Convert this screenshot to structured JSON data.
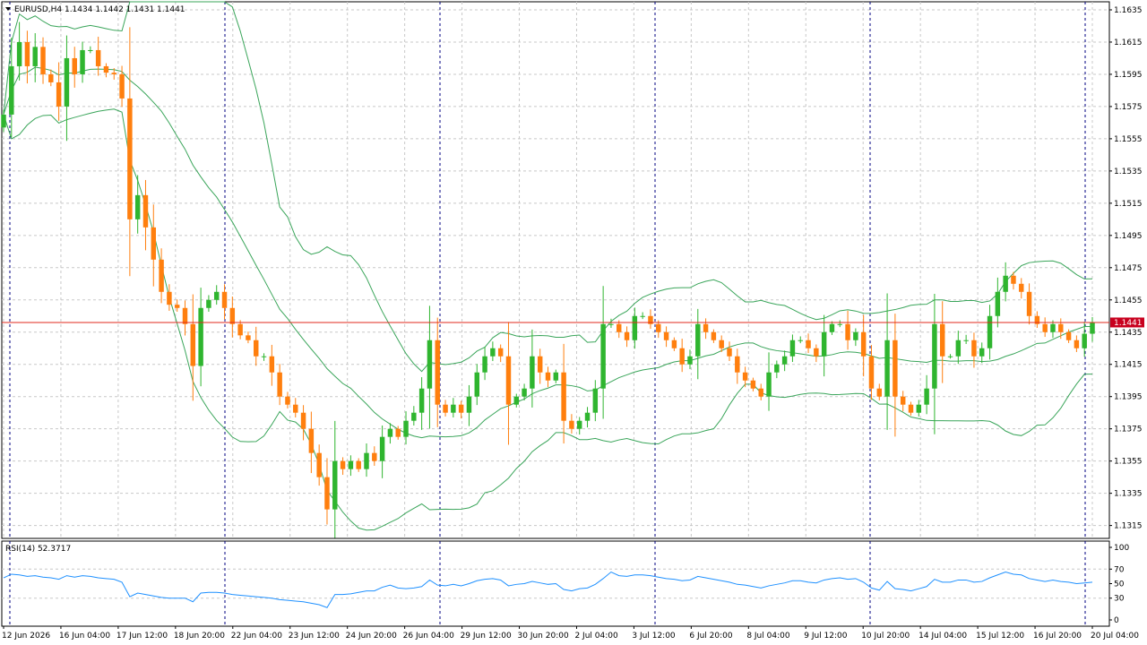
{
  "window": {
    "symbol_header": "EURUSD,H4  1.1434 1.1442 1.1431 1.1441",
    "rsi_header": "RSI(14) 52.3717",
    "current_price_tag": "1.1441"
  },
  "colors": {
    "bull": "#2fb52f",
    "bear": "#ff7f0e",
    "bands": "#3aa55a",
    "rsi": "#1e90ff",
    "price_line": "#e0281e",
    "grid": "#c8c8c8",
    "frame": "#000080"
  },
  "chart_data": {
    "type": "candlestick",
    "symbol": "EURUSD",
    "timeframe": "H4",
    "price_ticks": [
      "1.1635",
      "1.1615",
      "1.1595",
      "1.1575",
      "1.1555",
      "1.1535",
      "1.1515",
      "1.1495",
      "1.1475",
      "1.1455",
      "1.1435",
      "1.1415",
      "1.1395",
      "1.1375",
      "1.1355",
      "1.1335",
      "1.1315"
    ],
    "price_range": [
      1.1307,
      1.164
    ],
    "current_price": 1.1441,
    "rsi_ticks": [
      "100",
      "70",
      "50",
      "30",
      "0"
    ],
    "rsi_range": [
      0,
      100
    ],
    "time_labels": [
      "12 Jun 2026",
      "16 Jun 04:00",
      "17 Jun 12:00",
      "18 Jun 20:00",
      "22 Jun 04:00",
      "23 Jun 12:00",
      "24 Jun 20:00",
      "26 Jun 04:00",
      "29 Jun 12:00",
      "30 Jun 20:00",
      "2 Jul 04:00",
      "3 Jul 12:00",
      "6 Jul 20:00",
      "8 Jul 04:00",
      "9 Jul 12:00",
      "10 Jul 20:00",
      "14 Jul 04:00",
      "15 Jul 12:00",
      "16 Jul 20:00",
      "20 Jul 04:00"
    ],
    "closes": [
      1.157,
      1.16,
      1.1615,
      1.16,
      1.1612,
      1.1595,
      1.159,
      1.1575,
      1.1605,
      1.1595,
      1.161,
      1.161,
      1.16,
      1.1596,
      1.1595,
      1.158,
      1.1505,
      1.152,
      1.15,
      1.148,
      1.146,
      1.1452,
      1.145,
      1.144,
      1.1414,
      1.145,
      1.1455,
      1.146,
      1.145,
      1.144,
      1.1433,
      1.143,
      1.142,
      1.142,
      1.141,
      1.1395,
      1.139,
      1.1385,
      1.1375,
      1.136,
      1.1345,
      1.1325,
      1.1355,
      1.135,
      1.1355,
      1.135,
      1.136,
      1.1355,
      1.137,
      1.1375,
      1.137,
      1.138,
      1.1385,
      1.14,
      1.143,
      1.139,
      1.1385,
      1.139,
      1.1385,
      1.1395,
      1.141,
      1.142,
      1.1425,
      1.142,
      1.139,
      1.1395,
      1.14,
      1.142,
      1.141,
      1.1405,
      1.141,
      1.138,
      1.1375,
      1.138,
      1.1385,
      1.14,
      1.144,
      1.144,
      1.1435,
      1.143,
      1.1445,
      1.1445,
      1.144,
      1.1435,
      1.143,
      1.1425,
      1.1415,
      1.142,
      1.144,
      1.1435,
      1.143,
      1.1425,
      1.142,
      1.141,
      1.1405,
      1.14,
      1.1395,
      1.141,
      1.1415,
      1.142,
      1.143,
      1.143,
      1.1425,
      1.142,
      1.1435,
      1.144,
      1.144,
      1.143,
      1.1435,
      1.142,
      1.14,
      1.1395,
      1.143,
      1.1395,
      1.139,
      1.1385,
      1.139,
      1.14,
      1.144,
      1.142,
      1.142,
      1.143,
      1.143,
      1.142,
      1.1425,
      1.1445,
      1.146,
      1.147,
      1.1465,
      1.146,
      1.1445,
      1.144,
      1.1435,
      1.144,
      1.1435,
      1.143,
      1.1425,
      1.1434,
      1.1441
    ],
    "rsi_values": [
      58,
      63,
      62,
      60,
      61,
      59,
      58,
      56,
      61,
      59,
      61,
      60,
      58,
      57,
      56,
      52,
      32,
      37,
      35,
      33,
      31,
      30,
      30,
      30,
      25,
      37,
      38,
      38,
      37,
      35,
      34,
      33,
      32,
      31,
      30,
      28,
      27,
      26,
      25,
      23,
      21,
      17,
      35,
      35,
      36,
      38,
      40,
      40,
      45,
      48,
      44,
      43,
      44,
      46,
      55,
      48,
      47,
      49,
      47,
      50,
      54,
      56,
      57,
      55,
      47,
      49,
      50,
      53,
      51,
      49,
      50,
      42,
      40,
      43,
      44,
      49,
      57,
      66,
      61,
      60,
      62,
      62,
      61,
      59,
      57,
      56,
      54,
      55,
      60,
      58,
      56,
      54,
      52,
      49,
      48,
      46,
      44,
      47,
      49,
      51,
      54,
      54,
      52,
      51,
      55,
      57,
      58,
      56,
      57,
      52,
      44,
      41,
      53,
      43,
      42,
      40,
      43,
      46,
      56,
      52,
      52,
      55,
      55,
      52,
      53,
      58,
      62,
      66,
      63,
      62,
      57,
      55,
      53,
      55,
      53,
      52,
      50,
      51,
      52
    ]
  }
}
